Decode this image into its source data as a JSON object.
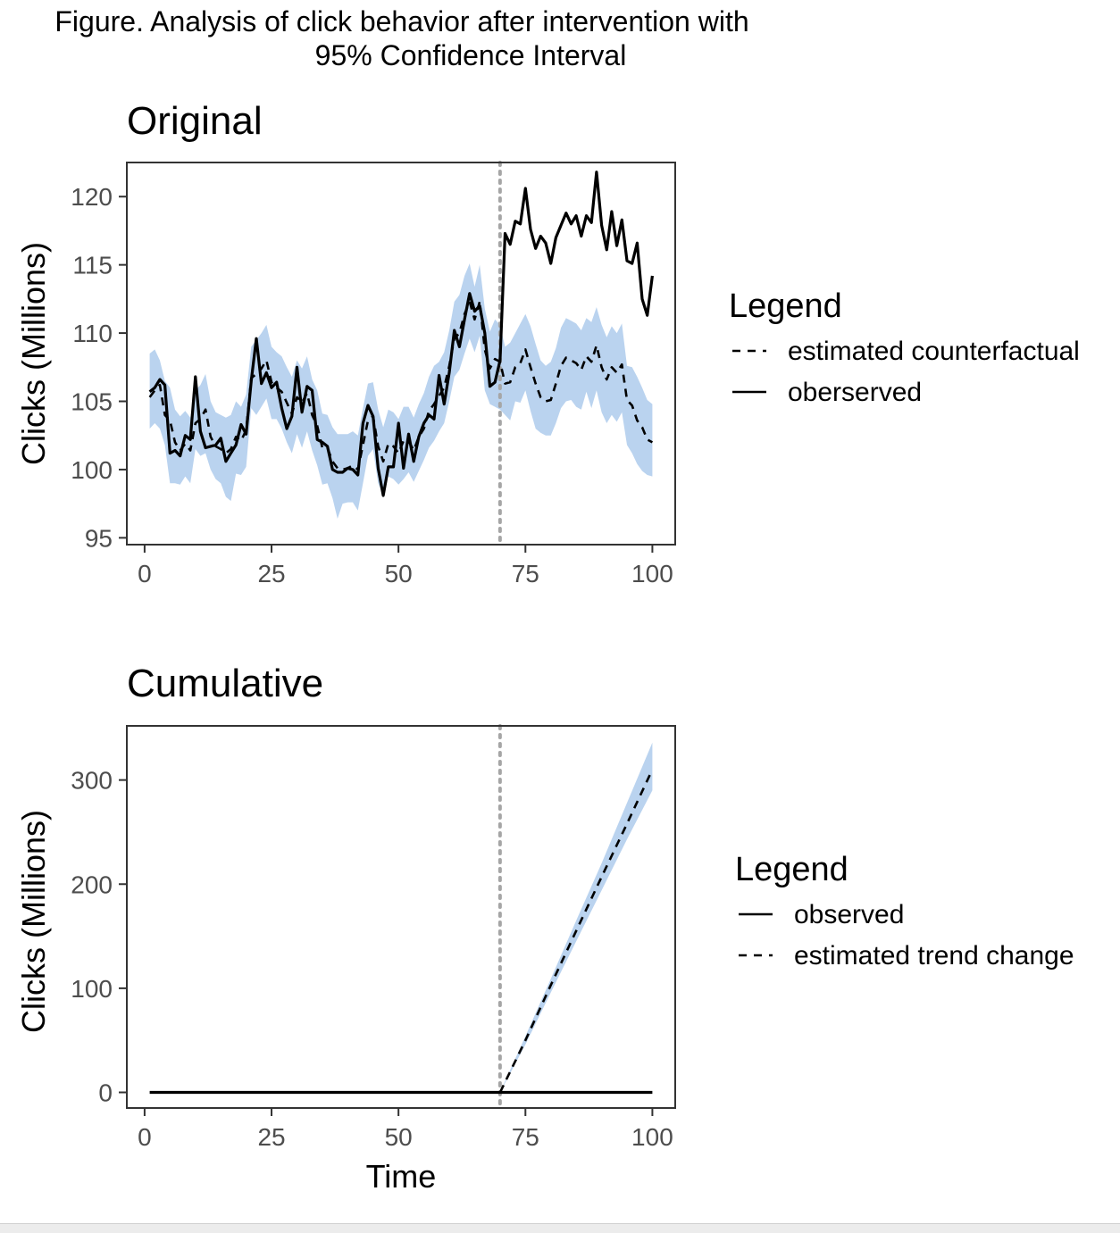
{
  "figure_title": {
    "line1": "Figure. Analysis of click behavior after intervention with",
    "line2": "95% Confidence Interval"
  },
  "colors": {
    "ribbon": "#bad3ef",
    "line": "#000000",
    "vline": "#a6a6a6",
    "axis": "#333333",
    "tick_text": "#4d4d4d"
  },
  "chart_data": [
    {
      "type": "line",
      "title": "Original",
      "xlabel": "",
      "ylabel": "Clicks (Millions)",
      "xlim": [
        -3.5,
        104.5
      ],
      "ylim": [
        94.5,
        122.5
      ],
      "x_ticks": [
        0,
        25,
        50,
        75,
        100
      ],
      "y_ticks": [
        95,
        100,
        105,
        110,
        115,
        120
      ],
      "intervention_x": 70,
      "legend_title": "Legend",
      "legend": [
        {
          "label": "estimated counterfactual",
          "style": "dashed"
        },
        {
          "label": "oberserved",
          "style": "solid"
        }
      ],
      "series": [
        {
          "name": "oberserved",
          "style": "solid",
          "x": [
            1,
            2,
            3,
            4,
            5,
            6,
            7,
            8,
            9,
            10,
            11,
            12,
            13,
            14,
            15,
            16,
            17,
            18,
            19,
            20,
            21,
            22,
            23,
            24,
            25,
            26,
            27,
            28,
            29,
            30,
            31,
            32,
            33,
            34,
            35,
            36,
            37,
            38,
            39,
            40,
            41,
            42,
            43,
            44,
            45,
            46,
            47,
            48,
            49,
            50,
            51,
            52,
            53,
            54,
            55,
            56,
            57,
            58,
            59,
            60,
            61,
            62,
            63,
            64,
            65,
            66,
            67,
            68,
            69,
            70,
            71,
            72,
            73,
            74,
            75,
            76,
            77,
            78,
            79,
            80,
            81,
            82,
            83,
            84,
            85,
            86,
            87,
            88,
            89,
            90,
            91,
            92,
            93,
            94,
            95,
            96,
            97,
            98,
            99,
            100
          ],
          "values": [
            105.7,
            106.0,
            106.6,
            106.2,
            101.2,
            101.4,
            101.0,
            102.5,
            102.2,
            106.8,
            102.8,
            101.6,
            101.7,
            101.8,
            102.3,
            100.6,
            101.2,
            101.8,
            103.3,
            102.6,
            106.5,
            109.6,
            106.3,
            107.1,
            106.0,
            106.4,
            104.5,
            103.0,
            103.9,
            107.5,
            104.2,
            106.1,
            105.8,
            102.2,
            102.0,
            101.7,
            100.0,
            99.8,
            99.8,
            100.1,
            100.0,
            99.6,
            103.4,
            104.7,
            103.9,
            100.1,
            98.1,
            100.2,
            100.2,
            103.4,
            100.1,
            102.6,
            100.6,
            102.4,
            103.4,
            104.0,
            103.7,
            106.9,
            104.8,
            107.1,
            110.2,
            109.0,
            111.0,
            112.9,
            111.6,
            112.0,
            110.0,
            106.1,
            106.4,
            108.0,
            117.3,
            116.5,
            118.2,
            118.0,
            120.6,
            117.6,
            116.2,
            117.1,
            116.6,
            115.1,
            117.0,
            117.9,
            118.8,
            118.0,
            118.6,
            117.1,
            118.6,
            118.1,
            121.8,
            117.9,
            116.1,
            118.9,
            116.4,
            118.3,
            115.3,
            115.1,
            116.6,
            112.5,
            111.3,
            114.2
          ]
        },
        {
          "name": "estimated counterfactual",
          "style": "dashed",
          "x": [
            1,
            2,
            3,
            4,
            5,
            6,
            7,
            8,
            9,
            10,
            11,
            12,
            13,
            14,
            15,
            16,
            17,
            18,
            19,
            20,
            21,
            22,
            23,
            24,
            25,
            26,
            27,
            28,
            29,
            30,
            31,
            32,
            33,
            34,
            35,
            36,
            37,
            38,
            39,
            40,
            41,
            42,
            43,
            44,
            45,
            46,
            47,
            48,
            49,
            50,
            51,
            52,
            53,
            54,
            55,
            56,
            57,
            58,
            59,
            60,
            61,
            62,
            63,
            64,
            65,
            66,
            67,
            68,
            69,
            70,
            71,
            72,
            73,
            74,
            75,
            76,
            77,
            78,
            79,
            80,
            81,
            82,
            83,
            84,
            85,
            86,
            87,
            88,
            89,
            90,
            91,
            92,
            93,
            94,
            95,
            96,
            97,
            98,
            99,
            100
          ],
          "values": [
            105.3,
            105.8,
            106.2,
            104.0,
            103.6,
            102.0,
            101.4,
            101.9,
            101.4,
            103.4,
            103.7,
            104.4,
            102.4,
            101.7,
            101.5,
            101.2,
            101.5,
            102.4,
            102.1,
            102.9,
            106.7,
            107.0,
            107.4,
            108.0,
            106.4,
            106.0,
            105.7,
            104.9,
            104.1,
            105.3,
            104.9,
            105.6,
            104.0,
            103.2,
            101.6,
            101.6,
            100.6,
            100.1,
            100.0,
            100.1,
            100.3,
            100.0,
            101.8,
            103.6,
            103.9,
            101.7,
            100.6,
            101.9,
            101.7,
            101.2,
            102.1,
            102.1,
            101.4,
            102.4,
            103.0,
            104.3,
            104.8,
            105.4,
            106.0,
            107.6,
            109.6,
            110.0,
            111.4,
            112.3,
            111.0,
            112.3,
            108.8,
            107.4,
            108.1,
            107.9,
            106.3,
            106.4,
            107.5,
            107.8,
            108.8,
            107.5,
            106.3,
            105.3,
            105.0,
            105.1,
            106.3,
            107.6,
            108.2,
            108.0,
            107.8,
            107.3,
            108.3,
            107.9,
            109.1,
            107.5,
            106.6,
            107.5,
            107.1,
            107.7,
            105.1,
            104.7,
            103.6,
            103.1,
            102.2,
            102.0
          ]
        }
      ],
      "ribbon": {
        "name": "95% Confidence Interval",
        "x": [
          1,
          2,
          3,
          4,
          5,
          6,
          7,
          8,
          9,
          10,
          11,
          12,
          13,
          14,
          15,
          16,
          17,
          18,
          19,
          20,
          21,
          22,
          23,
          24,
          25,
          26,
          27,
          28,
          29,
          30,
          31,
          32,
          33,
          34,
          35,
          36,
          37,
          38,
          39,
          40,
          41,
          42,
          43,
          44,
          45,
          46,
          47,
          48,
          49,
          50,
          51,
          52,
          53,
          54,
          55,
          56,
          57,
          58,
          59,
          60,
          61,
          62,
          63,
          64,
          65,
          66,
          67,
          68,
          69,
          70,
          71,
          72,
          73,
          74,
          75,
          76,
          77,
          78,
          79,
          80,
          81,
          82,
          83,
          84,
          85,
          86,
          87,
          88,
          89,
          90,
          91,
          92,
          93,
          94,
          95,
          96,
          97,
          98,
          99,
          100
        ],
        "lower": [
          103.0,
          103.4,
          103.0,
          101.8,
          99.0,
          99.0,
          98.9,
          99.5,
          99.0,
          101.5,
          101.0,
          101.2,
          100.0,
          99.3,
          99.0,
          98.0,
          97.7,
          99.7,
          99.6,
          100.2,
          104.5,
          104.0,
          104.6,
          105.2,
          103.7,
          103.7,
          103.0,
          102.0,
          101.2,
          102.6,
          101.6,
          102.8,
          101.4,
          100.3,
          98.9,
          99.0,
          97.9,
          96.4,
          97.5,
          97.6,
          97.6,
          97.0,
          99.0,
          101.0,
          101.5,
          99.0,
          98.1,
          99.5,
          99.3,
          98.9,
          99.3,
          99.8,
          99.1,
          99.9,
          100.7,
          101.6,
          102.1,
          102.8,
          103.4,
          105.0,
          106.8,
          107.3,
          108.5,
          109.6,
          108.6,
          109.8,
          105.8,
          104.8,
          104.6,
          104.4,
          104.0,
          103.6,
          105.0,
          104.9,
          105.8,
          104.3,
          103.0,
          102.7,
          102.5,
          102.5,
          103.4,
          104.5,
          105.0,
          105.1,
          104.6,
          104.4,
          105.7,
          104.5,
          105.8,
          104.2,
          103.4,
          104.0,
          103.5,
          104.2,
          101.8,
          101.2,
          100.4,
          99.9,
          99.6,
          99.5
        ],
        "upper": [
          108.5,
          108.8,
          108.0,
          106.5,
          106.0,
          104.4,
          103.9,
          104.3,
          103.8,
          105.8,
          106.2,
          107.0,
          105.0,
          104.2,
          104.0,
          103.8,
          104.0,
          105.0,
          104.6,
          105.5,
          109.0,
          109.5,
          110.0,
          110.6,
          109.0,
          108.6,
          108.3,
          107.5,
          106.8,
          108.0,
          107.4,
          108.3,
          106.6,
          105.8,
          104.1,
          104.0,
          103.1,
          102.6,
          102.6,
          102.6,
          102.8,
          102.5,
          104.5,
          106.3,
          106.4,
          104.4,
          103.1,
          104.4,
          104.2,
          103.7,
          104.6,
          104.6,
          103.8,
          104.8,
          105.6,
          106.8,
          107.6,
          107.9,
          108.6,
          110.2,
          112.3,
          112.8,
          114.2,
          115.1,
          113.4,
          115.0,
          111.8,
          110.1,
          111.0,
          110.6,
          109.0,
          109.3,
          110.0,
          110.7,
          111.4,
          110.5,
          109.2,
          108.0,
          107.6,
          107.9,
          108.9,
          110.4,
          111.1,
          110.9,
          110.7,
          110.2,
          111.1,
          110.8,
          111.9,
          110.6,
          109.7,
          110.5,
          110.0,
          110.7,
          107.6,
          107.5,
          106.8,
          106.0,
          105.1,
          104.8
        ]
      }
    },
    {
      "type": "line",
      "title": "Cumulative",
      "xlabel": "Time",
      "ylabel": "Clicks (Millions)",
      "xlim": [
        -3.5,
        104.5
      ],
      "ylim": [
        -15,
        352
      ],
      "x_ticks": [
        0,
        25,
        50,
        75,
        100
      ],
      "y_ticks": [
        0,
        100,
        200,
        300
      ],
      "intervention_x": 70,
      "legend_title": "Legend",
      "legend": [
        {
          "label": "observed",
          "style": "solid"
        },
        {
          "label": "estimated trend change",
          "style": "dashed"
        }
      ],
      "series": [
        {
          "name": "observed",
          "style": "solid",
          "x": [
            1,
            100
          ],
          "values": [
            0,
            0
          ]
        },
        {
          "name": "estimated trend change",
          "style": "dashed",
          "x": [
            70,
            75,
            80,
            85,
            90,
            95,
            100
          ],
          "values": [
            0,
            50,
            103,
            155,
            207,
            258,
            310
          ]
        }
      ],
      "ribbon": {
        "name": "95% Confidence Interval",
        "x": [
          70,
          75,
          80,
          85,
          90,
          95,
          100
        ],
        "lower": [
          0,
          46,
          96,
          145,
          194,
          243,
          290
        ],
        "upper": [
          0,
          54,
          109,
          165,
          220,
          278,
          336
        ]
      }
    }
  ]
}
